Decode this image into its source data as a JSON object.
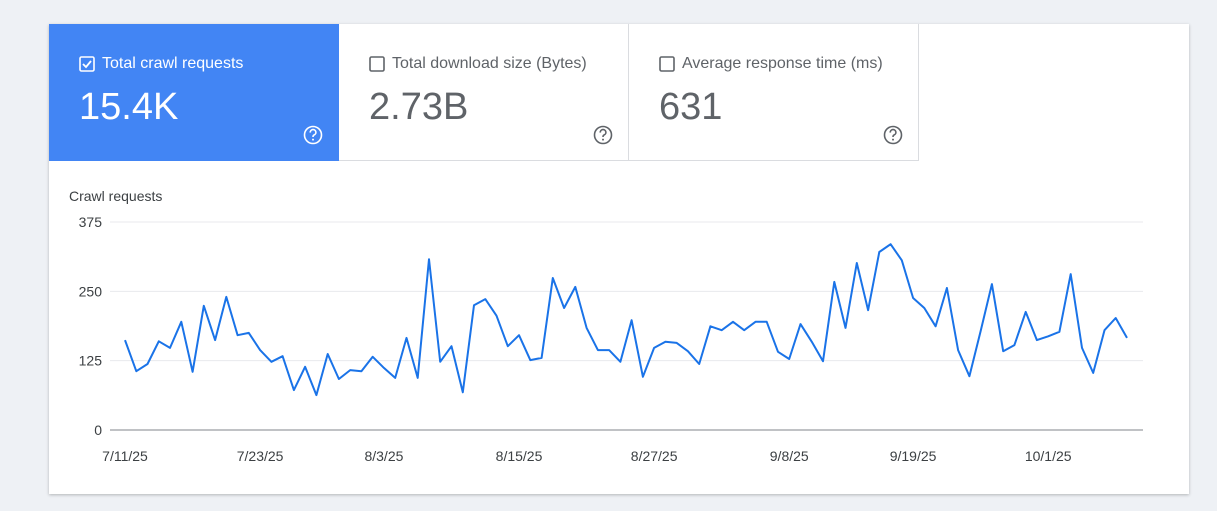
{
  "cards": [
    {
      "label": "Total crawl requests",
      "value": "15.4K",
      "selected": true
    },
    {
      "label": "Total download size (Bytes)",
      "value": "2.73B",
      "selected": false
    },
    {
      "label": "Average response time (ms)",
      "value": "631",
      "selected": false
    }
  ],
  "chart_data": {
    "type": "line",
    "y_label": "Crawl requests",
    "color": "#1a73e8",
    "x": [
      "7/11/25",
      "7/12/25",
      "7/13/25",
      "7/14/25",
      "7/15/25",
      "7/16/25",
      "7/17/25",
      "7/18/25",
      "7/19/25",
      "7/20/25",
      "7/21/25",
      "7/22/25",
      "7/23/25",
      "7/24/25",
      "7/25/25",
      "7/26/25",
      "7/27/25",
      "7/28/25",
      "7/29/25",
      "7/30/25",
      "7/31/25",
      "8/1/25",
      "8/2/25",
      "8/3/25",
      "8/4/25",
      "8/5/25",
      "8/6/25",
      "8/7/25",
      "8/8/25",
      "8/9/25",
      "8/10/25",
      "8/11/25",
      "8/12/25",
      "8/13/25",
      "8/14/25",
      "8/15/25",
      "8/16/25",
      "8/17/25",
      "8/18/25",
      "8/19/25",
      "8/20/25",
      "8/21/25",
      "8/22/25",
      "8/23/25",
      "8/24/25",
      "8/25/25",
      "8/26/25",
      "8/27/25",
      "8/28/25",
      "8/29/25",
      "8/30/25",
      "8/31/25",
      "9/1/25",
      "9/2/25",
      "9/3/25",
      "9/4/25",
      "9/5/25",
      "9/6/25",
      "9/7/25",
      "9/8/25",
      "9/9/25",
      "9/10/25",
      "9/11/25",
      "9/12/25",
      "9/13/25",
      "9/14/25",
      "9/15/25",
      "9/16/25",
      "9/17/25",
      "9/18/25",
      "9/19/25",
      "9/20/25",
      "9/21/25",
      "9/22/25",
      "9/23/25",
      "9/24/25",
      "9/25/25",
      "9/26/25",
      "9/27/25",
      "9/28/25",
      "9/29/25",
      "9/30/25",
      "10/1/25",
      "10/2/25",
      "10/3/25",
      "10/4/25",
      "10/5/25",
      "10/6/25",
      "10/7/25",
      "10/8/25"
    ],
    "values": [
      162,
      106,
      119,
      160,
      148,
      195,
      105,
      224,
      162,
      240,
      171,
      175,
      144,
      123,
      133,
      72,
      114,
      63,
      137,
      92,
      108,
      106,
      132,
      112,
      94,
      166,
      94,
      308,
      123,
      151,
      68,
      225,
      236,
      206,
      151,
      171,
      126,
      130,
      274,
      220,
      258,
      184,
      144,
      144,
      123,
      198,
      96,
      148,
      159,
      157,
      142,
      119,
      187,
      180,
      195,
      180,
      195,
      195,
      141,
      128,
      191,
      159,
      124,
      267,
      184,
      301,
      216,
      321,
      335,
      306,
      238,
      220,
      187,
      256,
      144,
      97,
      178,
      263,
      142,
      153,
      213,
      162,
      169,
      177,
      281,
      148,
      103,
      180,
      202,
      166
    ],
    "ylim": [
      0,
      375
    ],
    "yticks": [
      0,
      125,
      250,
      375
    ],
    "xticks": [
      "7/11/25",
      "7/23/25",
      "8/3/25",
      "8/15/25",
      "8/27/25",
      "9/8/25",
      "9/19/25",
      "10/1/25"
    ],
    "grid": true
  }
}
